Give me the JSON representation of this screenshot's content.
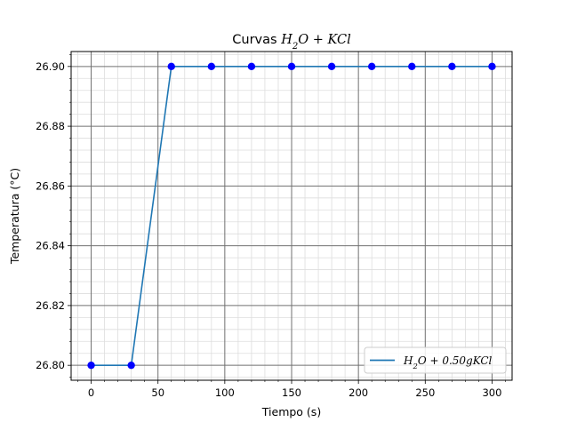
{
  "chart_data": {
    "type": "line",
    "title": {
      "prefix": "Curvas ",
      "math": [
        {
          "t": "H",
          "sub": false
        },
        {
          "t": "2",
          "sub": true
        },
        {
          "t": "O + KCl",
          "sub": false
        }
      ]
    },
    "xlabel": "Tiempo (s)",
    "ylabel": "Temperatura (°C)",
    "xlim": [
      -15,
      315
    ],
    "ylim": [
      26.795,
      26.905
    ],
    "xticks": [
      0,
      50,
      100,
      150,
      200,
      250,
      300
    ],
    "yticks": [
      26.8,
      26.82,
      26.84,
      26.86,
      26.88,
      26.9
    ],
    "ytick_labels": [
      "26.80",
      "26.82",
      "26.84",
      "26.86",
      "26.88",
      "26.90"
    ],
    "xticks_minor_step": 10,
    "yticks_minor_step": 0.004,
    "grid": true,
    "legend_position": "lower-right",
    "series": [
      {
        "legend": [
          {
            "t": "H",
            "sub": false
          },
          {
            "t": "2",
            "sub": true
          },
          {
            "t": "O + 0.50gKCl",
            "sub": false
          }
        ],
        "line_color": "#1f77b4",
        "marker_color": "#0000ff",
        "x": [
          0,
          30,
          60,
          90,
          120,
          150,
          180,
          210,
          240,
          270,
          300
        ],
        "y": [
          26.8,
          26.8,
          26.9,
          26.9,
          26.9,
          26.9,
          26.9,
          26.9,
          26.9,
          26.9,
          26.9
        ]
      }
    ]
  }
}
